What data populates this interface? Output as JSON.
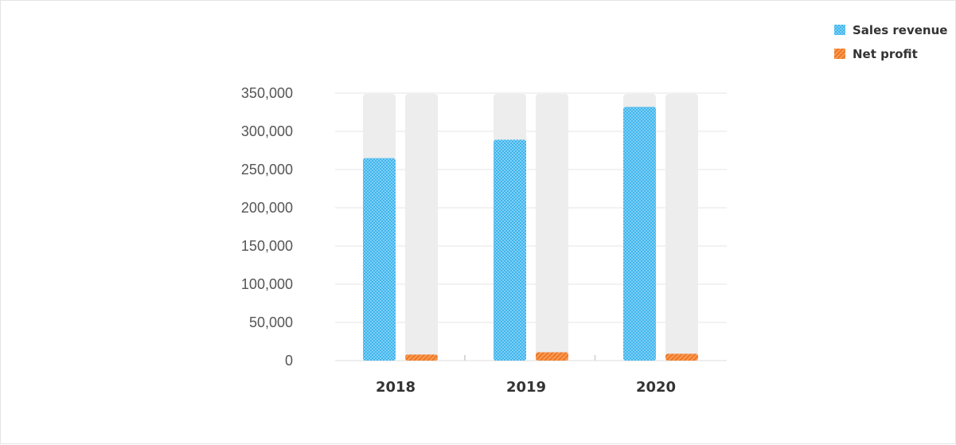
{
  "chart_data": {
    "type": "bar",
    "categories": [
      "2018",
      "2019",
      "2020"
    ],
    "series": [
      {
        "name": "Sales revenue",
        "values": [
          265000,
          289000,
          332000
        ],
        "color": "#3fb4ec"
      },
      {
        "name": "Net profit",
        "values": [
          8000,
          11000,
          9000
        ],
        "color": "#f07a2a"
      }
    ],
    "ylim": [
      0,
      350000
    ],
    "yticks": [
      0,
      50000,
      100000,
      150000,
      200000,
      250000,
      300000,
      350000
    ],
    "ytick_labels": [
      "0",
      "50,000",
      "100,000",
      "150,000",
      "200,000",
      "250,000",
      "300,000",
      "350,000"
    ],
    "grid": true,
    "legend_position": "top-right",
    "track_color": "#ededed",
    "title": "",
    "xlabel": "",
    "ylabel": ""
  }
}
